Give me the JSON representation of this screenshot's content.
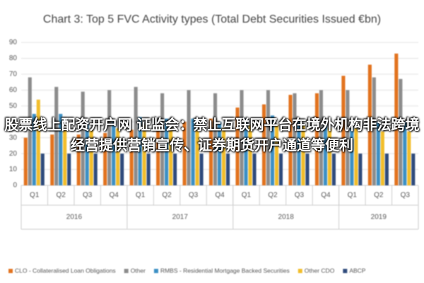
{
  "chart_data": {
    "type": "bar",
    "title": "Chart 3: Top 5 FVC Activity types (Total Debt Securities Issued €bn)",
    "groups": [
      {
        "label": "2016",
        "categories": [
          "Q1",
          "Q2",
          "Q3",
          "Q4"
        ]
      },
      {
        "label": "2017",
        "categories": [
          "Q1",
          "Q2",
          "Q3",
          "Q4"
        ]
      },
      {
        "label": "2018",
        "categories": [
          "Q1",
          "Q2",
          "Q3",
          "Q4"
        ]
      },
      {
        "label": "2019",
        "categories": [
          "Q1",
          "Q2",
          "Q3"
        ]
      }
    ],
    "series": [
      {
        "name": "CLO - Collateralised Loan Obligations",
        "color": "#e2731f",
        "values": [
          30,
          32,
          32,
          33,
          35,
          38,
          40,
          42,
          49,
          51,
          57,
          58,
          69,
          76,
          83
        ]
      },
      {
        "name": "Other",
        "color": "#8c8c8c",
        "values": [
          68,
          62,
          59,
          60,
          62,
          58,
          60,
          58,
          60,
          60,
          58,
          60,
          60,
          68,
          67
        ]
      },
      {
        "name": "RMBS - Residential Mortgage Backed Securities",
        "color": "#3b8fc4",
        "values": [
          45,
          45,
          40,
          40,
          43,
          42,
          42,
          40,
          42,
          44,
          40,
          38,
          38,
          40,
          40
        ]
      },
      {
        "name": "Other CDO",
        "color": "#f2bd2a",
        "values": [
          54,
          40,
          35,
          36,
          38,
          36,
          38,
          36,
          38,
          38,
          38,
          36,
          36,
          34,
          34
        ]
      },
      {
        "name": "ABCP",
        "color": "#2f4b7c",
        "values": [
          20,
          20,
          20,
          20,
          20,
          20,
          20,
          20,
          20,
          20,
          20,
          20,
          20,
          20,
          20
        ]
      }
    ],
    "ylim": [
      0,
      90
    ],
    "yticks": [
      0,
      10,
      20,
      30,
      40,
      50,
      60,
      70,
      80,
      90
    ],
    "grid": true,
    "legend": "bottom"
  },
  "overlay": {
    "text": "股票线上配资开户网 证监会：禁止互联网平台在境外机构非法跨境经营提供营销宣传、证券期货开户通道等便利"
  }
}
